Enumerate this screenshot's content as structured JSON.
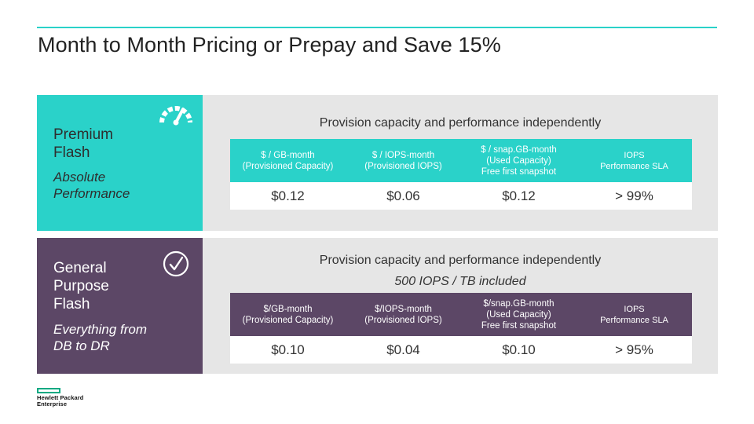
{
  "slide": {
    "title": "Month to Month Pricing or Prepay and Save 15%"
  },
  "colors": {
    "teal": "#2ad2c9",
    "purple": "#5c4766",
    "panel": "#e6e6e6",
    "logo_green": "#01a982"
  },
  "premium": {
    "name_line1": "Premium",
    "name_line2": "Flash",
    "sub_line1": "Absolute",
    "sub_line2": "Performance",
    "icon": "speedometer-gauge-icon",
    "heading": "Provision capacity and performance independently",
    "columns": [
      {
        "line1": "$ / GB-month",
        "line2": "(Provisioned Capacity)",
        "line3": ""
      },
      {
        "line1": "$ / IOPS-month",
        "line2": "(Provisioned IOPS)",
        "line3": ""
      },
      {
        "line1": "$ / snap.GB-month",
        "line2": "(Used Capacity)",
        "line3": "Free first snapshot"
      },
      {
        "line1": "IOPS",
        "line2": "Performance SLA",
        "line3": ""
      }
    ],
    "values": [
      "$0.12",
      "$0.06",
      "$0.12",
      "> 99%"
    ]
  },
  "general": {
    "name_line1": "General",
    "name_line2": "Purpose",
    "name_line3": "Flash",
    "sub_line1": "Everything from",
    "sub_line2": "DB to DR",
    "icon": "checkmark-circle-icon",
    "heading_line1": "Provision capacity and performance independently",
    "heading_line2": "500 IOPS / TB included",
    "columns": [
      {
        "line1": "$/GB-month",
        "line2": "(Provisioned Capacity)",
        "line3": ""
      },
      {
        "line1": "$/IOPS-month",
        "line2": "(Provisioned IOPS)",
        "line3": ""
      },
      {
        "line1": "$/snap.GB-month",
        "line2": "(Used Capacity)",
        "line3": "Free first snapshot"
      },
      {
        "line1": "IOPS",
        "line2": "Performance SLA",
        "line3": ""
      }
    ],
    "values": [
      "$0.10",
      "$0.04",
      "$0.10",
      "> 95%"
    ]
  },
  "logo": {
    "line1": "Hewlett Packard",
    "line2": "Enterprise"
  }
}
